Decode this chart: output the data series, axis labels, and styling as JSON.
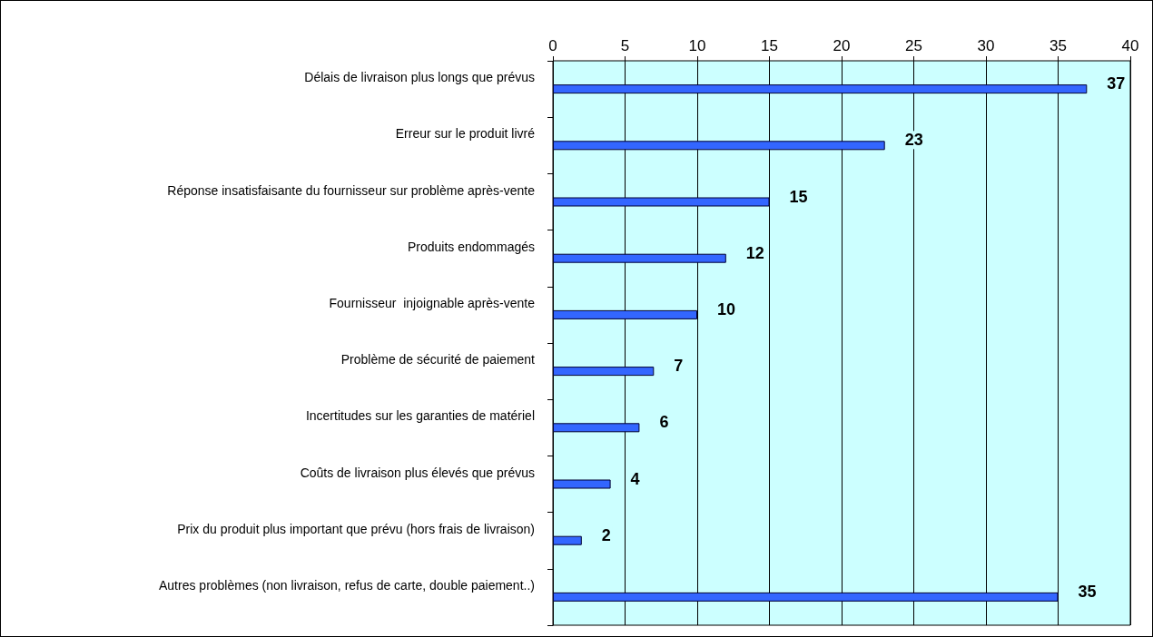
{
  "chart_data": {
    "type": "bar",
    "orientation": "horizontal",
    "categories": [
      "Délais de livraison plus longs que prévus",
      "Erreur sur le produit livré",
      "Réponse insatisfaisante du fournisseur sur problème après-vente",
      "Produits endommagés",
      "Fournisseur  injoignable après-vente",
      "Problème de sécurité de paiement",
      "Incertitudes sur les garanties de matériel",
      "Coûts de livraison plus élevés que prévus",
      "Prix du produit plus important que prévu (hors frais de livraison)",
      "Autres problèmes (non livraison, refus de carte, double paiement..)"
    ],
    "values": [
      37,
      23,
      15,
      12,
      10,
      7,
      6,
      4,
      2,
      35
    ],
    "color": "#3366ff",
    "xlim": [
      0,
      40
    ],
    "xticks": [
      0,
      5,
      10,
      15,
      20,
      25,
      30,
      35,
      40
    ],
    "grid": "x",
    "data_labels": true
  }
}
